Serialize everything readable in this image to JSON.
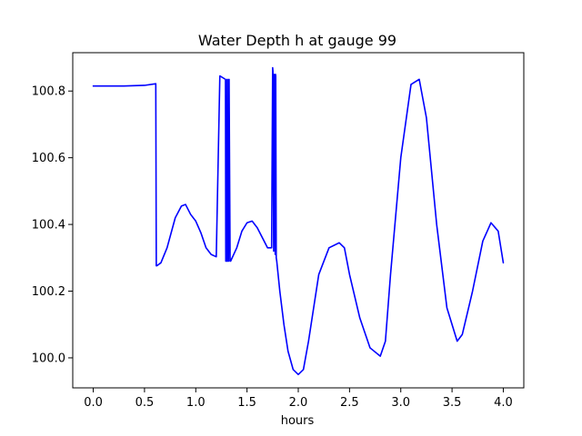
{
  "chart_data": {
    "type": "line",
    "title": "Water Depth h at gauge 99",
    "xlabel": "hours",
    "ylabel": "",
    "xlim": [
      -0.2,
      4.2
    ],
    "ylim": [
      99.91,
      100.915
    ],
    "x_ticks": [
      0.0,
      0.5,
      1.0,
      1.5,
      2.0,
      2.5,
      3.0,
      3.5,
      4.0
    ],
    "x_tick_labels": [
      "0.0",
      "0.5",
      "1.0",
      "1.5",
      "2.0",
      "2.5",
      "3.0",
      "3.5",
      "4.0"
    ],
    "y_ticks": [
      100.0,
      100.2,
      100.4,
      100.6,
      100.8
    ],
    "y_tick_labels": [
      "100.0",
      "100.2",
      "100.4",
      "100.6",
      "100.8"
    ],
    "grid": false,
    "legend": "none",
    "series": [
      {
        "color": "#0000ff",
        "x": [
          0.0,
          0.3,
          0.5,
          0.61,
          0.615,
          0.62,
          0.66,
          0.72,
          0.8,
          0.86,
          0.9,
          0.95,
          1.0,
          1.05,
          1.1,
          1.15,
          1.2,
          1.235,
          1.237,
          1.29,
          1.293,
          1.3,
          1.305,
          1.308,
          1.31,
          1.32,
          1.323,
          1.325,
          1.335,
          1.34,
          1.4,
          1.45,
          1.5,
          1.55,
          1.6,
          1.65,
          1.7,
          1.74,
          1.75,
          1.753,
          1.76,
          1.765,
          1.768,
          1.775,
          1.778,
          1.78,
          1.785,
          1.79,
          1.82,
          1.86,
          1.9,
          1.95,
          2.0,
          2.05,
          2.1,
          2.15,
          2.2,
          2.3,
          2.4,
          2.45,
          2.5,
          2.6,
          2.7,
          2.8,
          2.85,
          2.9,
          3.0,
          3.1,
          3.18,
          3.25,
          3.35,
          3.45,
          3.55,
          3.6,
          3.7,
          3.8,
          3.88,
          3.95,
          4.0
        ],
        "y": [
          100.815,
          100.815,
          100.817,
          100.822,
          100.276,
          100.276,
          100.285,
          100.33,
          100.42,
          100.455,
          100.46,
          100.43,
          100.41,
          100.375,
          100.33,
          100.31,
          100.303,
          100.845,
          100.845,
          100.835,
          100.29,
          100.29,
          100.835,
          100.835,
          100.29,
          100.29,
          100.835,
          100.835,
          100.29,
          100.29,
          100.33,
          100.38,
          100.405,
          100.41,
          100.39,
          100.36,
          100.33,
          100.33,
          100.87,
          100.86,
          100.32,
          100.85,
          100.85,
          100.31,
          100.85,
          100.845,
          100.3,
          100.29,
          100.2,
          100.1,
          100.02,
          99.965,
          99.95,
          99.965,
          100.05,
          100.15,
          100.25,
          100.33,
          100.345,
          100.33,
          100.25,
          100.12,
          100.03,
          100.005,
          100.05,
          100.25,
          100.6,
          100.82,
          100.835,
          100.72,
          100.4,
          100.15,
          100.05,
          100.07,
          100.2,
          100.35,
          100.405,
          100.38,
          100.285
        ]
      }
    ]
  }
}
